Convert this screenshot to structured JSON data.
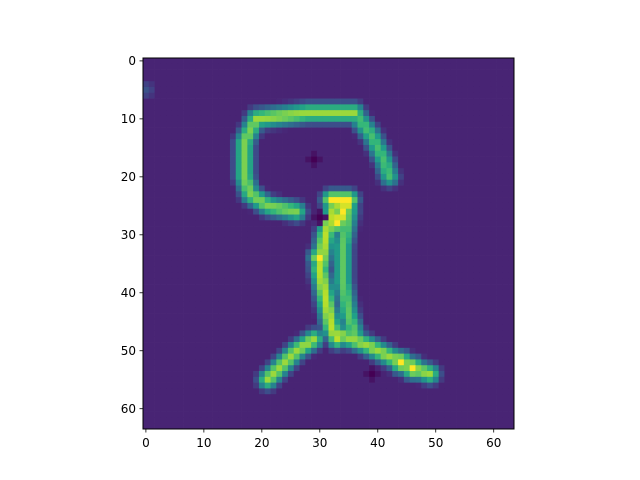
{
  "chart_data": {
    "type": "heatmap",
    "title": "",
    "xlabel": "",
    "ylabel": "",
    "image_shape": [
      64,
      64
    ],
    "xlim": [
      -0.5,
      63.5
    ],
    "ylim": [
      63.5,
      -0.5
    ],
    "x_ticks": [
      0,
      10,
      20,
      30,
      40,
      50,
      60
    ],
    "y_ticks": [
      0,
      10,
      20,
      30,
      40,
      50,
      60
    ],
    "x_tick_labels": [
      "0",
      "10",
      "20",
      "30",
      "40",
      "50",
      "60"
    ],
    "y_tick_labels": [
      "0",
      "10",
      "20",
      "30",
      "40",
      "50",
      "60"
    ],
    "colormap": "viridis",
    "grid": false,
    "background_value": 0.1,
    "strokes": [
      {
        "name": "top-bar",
        "points": [
          [
            19,
            10
          ],
          [
            28,
            9
          ],
          [
            36,
            9
          ]
        ],
        "value": 0.85
      },
      {
        "name": "left-arc",
        "points": [
          [
            19,
            10
          ],
          [
            17,
            14
          ],
          [
            17,
            20
          ],
          [
            18,
            23
          ],
          [
            21,
            25
          ],
          [
            26,
            26
          ]
        ],
        "value": 0.8
      },
      {
        "name": "right-hook",
        "points": [
          [
            36,
            9
          ],
          [
            39,
            13
          ],
          [
            41,
            17
          ],
          [
            42,
            20
          ]
        ],
        "value": 0.7
      },
      {
        "name": "blob",
        "points": [
          [
            32,
            24
          ],
          [
            35,
            24
          ],
          [
            33,
            28
          ]
        ],
        "value": 1.0
      },
      {
        "name": "stem-left",
        "points": [
          [
            33,
            24
          ],
          [
            31,
            30
          ],
          [
            30,
            36
          ],
          [
            31,
            41
          ],
          [
            32,
            46
          ],
          [
            33,
            48
          ]
        ],
        "value": 0.9
      },
      {
        "name": "stem-right",
        "points": [
          [
            35,
            26
          ],
          [
            34,
            32
          ],
          [
            34,
            38
          ],
          [
            35,
            44
          ],
          [
            36,
            47
          ]
        ],
        "value": 0.75
      },
      {
        "name": "left-leg",
        "points": [
          [
            29,
            48
          ],
          [
            26,
            50
          ],
          [
            23,
            53
          ],
          [
            21,
            55
          ]
        ],
        "value": 0.85
      },
      {
        "name": "right-leg",
        "points": [
          [
            33,
            47
          ],
          [
            38,
            49
          ],
          [
            42,
            51
          ],
          [
            46,
            53
          ],
          [
            49,
            54
          ]
        ],
        "value": 0.85
      }
    ],
    "spots": [
      {
        "x": 44,
        "y": 52,
        "value": 1.0
      },
      {
        "x": 46,
        "y": 53,
        "value": 1.0
      },
      {
        "x": 30,
        "y": 34,
        "value": 1.0
      },
      {
        "x": 0,
        "y": 5,
        "value": 0.25
      }
    ],
    "dark_spots": [
      {
        "x": 30,
        "y": 27,
        "value": 0.0
      },
      {
        "x": 39,
        "y": 54,
        "value": 0.0
      },
      {
        "x": 29,
        "y": 17,
        "value": 0.0
      }
    ]
  }
}
